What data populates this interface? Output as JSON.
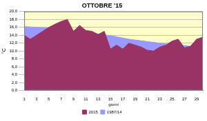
{
  "chart_data": {
    "type": "area",
    "title": "OTTOBRE '15",
    "x_label": "giorni",
    "y_label": "°C",
    "categories": [
      "1",
      null,
      "3",
      null,
      "5",
      null,
      "7",
      null,
      "9",
      null,
      "11",
      null,
      "13",
      null,
      "15",
      null,
      "17",
      null,
      "19",
      null,
      "21",
      null,
      "23",
      null,
      "25",
      null,
      "27",
      null,
      "29",
      null
    ],
    "series": [
      {
        "name": "1987/14",
        "color": "#9999ff",
        "values": [
          16.2,
          16.1,
          16.0,
          15.9,
          15.8,
          15.7,
          15.5,
          15.3,
          15.1,
          14.9,
          14.7,
          14.5,
          14.3,
          14.1,
          13.9,
          13.6,
          13.3,
          13.0,
          12.8,
          12.6,
          12.4,
          12.2,
          12.0,
          11.8,
          11.7,
          11.5,
          11.4,
          11.2,
          11.1,
          11.0
        ]
      },
      {
        "name": "2015",
        "color": "#993366",
        "values": [
          14.0,
          13.0,
          14.0,
          15.0,
          16.0,
          16.8,
          17.5,
          18.0,
          15.0,
          16.5,
          15.2,
          15.0,
          14.2,
          15.0,
          10.5,
          11.5,
          10.5,
          12.0,
          11.5,
          11.0,
          10.2,
          10.0,
          11.0,
          11.5,
          12.5,
          13.0,
          10.8,
          11.2,
          13.0,
          13.5
        ]
      }
    ],
    "ylim": [
      0,
      20
    ],
    "yticks": [
      {
        "value": 0,
        "label": "0,0"
      },
      {
        "value": 2,
        "label": "2,0"
      },
      {
        "value": 4,
        "label": "4,0"
      },
      {
        "value": 6,
        "label": "6,0"
      },
      {
        "value": 8,
        "label": "8,0"
      },
      {
        "value": 10,
        "label": "10,0"
      },
      {
        "value": 12,
        "label": "12,0"
      },
      {
        "value": 14,
        "label": "14,0"
      },
      {
        "value": 16,
        "label": "16,0"
      },
      {
        "value": 18,
        "label": "18,0"
      },
      {
        "value": 20,
        "label": "20,0"
      }
    ],
    "grid": true,
    "legend": "bottom"
  }
}
